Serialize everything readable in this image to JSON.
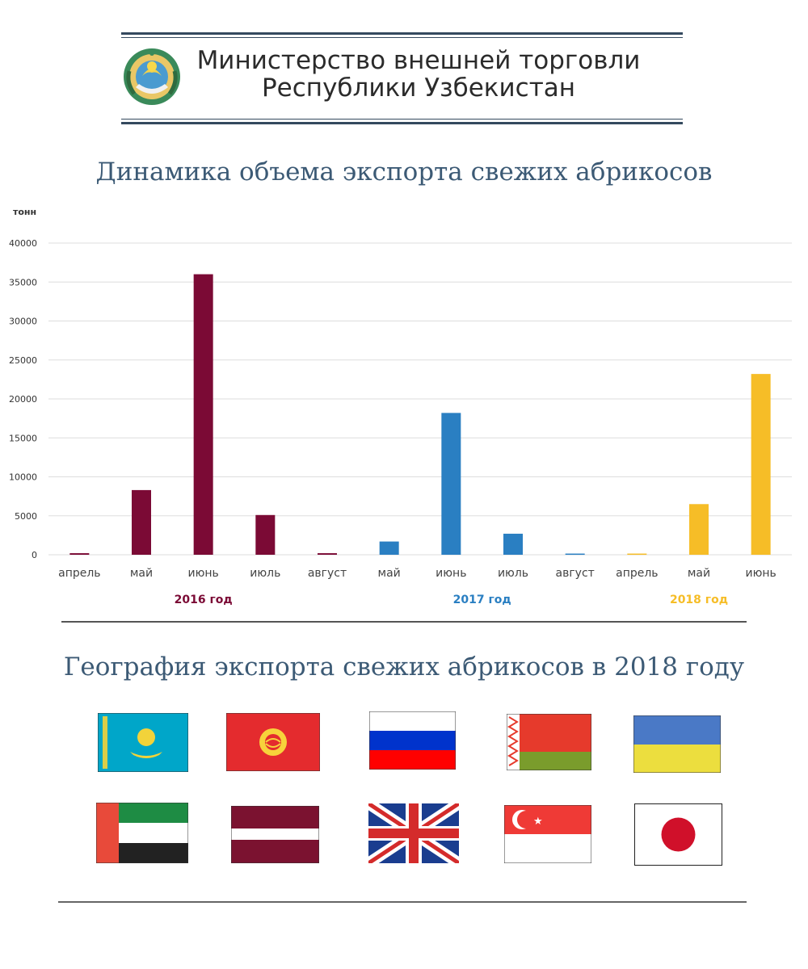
{
  "header": {
    "ministry_line1": "Министерство внешней торговли",
    "ministry_line2": "Республики Узбекистан"
  },
  "chart_data": {
    "type": "bar",
    "title": "Динамика объема экспорта свежих абрикосов",
    "ylabel": "тонн",
    "ylim": [
      0,
      40000
    ],
    "yticks": [
      0,
      5000,
      10000,
      15000,
      20000,
      25000,
      30000,
      35000,
      40000
    ],
    "grid": true,
    "categories": [
      "апрель",
      "май",
      "июнь",
      "июль",
      "август",
      "май",
      "июнь",
      "июль",
      "август",
      "апрель",
      "май",
      "июнь"
    ],
    "groups": [
      {
        "name": "2016 год",
        "color": "#7b0a35",
        "start": 0,
        "end": 4
      },
      {
        "name": "2017 год",
        "color": "#2a7fc2",
        "start": 5,
        "end": 8
      },
      {
        "name": "2018 год",
        "color": "#f6bd27",
        "start": 9,
        "end": 11
      }
    ],
    "values": [
      200,
      8300,
      36000,
      5100,
      200,
      1700,
      18200,
      2700,
      150,
      150,
      6500,
      23200
    ]
  },
  "geography": {
    "title": "География экспорта свежих абрикосов в 2018 году",
    "flags": [
      "kazakhstan-flag",
      "kyrgyzstan-flag",
      "russia-flag",
      "belarus-flag",
      "ukraine-flag",
      "uae-flag",
      "latvia-flag",
      "uk-flag",
      "singapore-flag",
      "japan-flag"
    ]
  }
}
